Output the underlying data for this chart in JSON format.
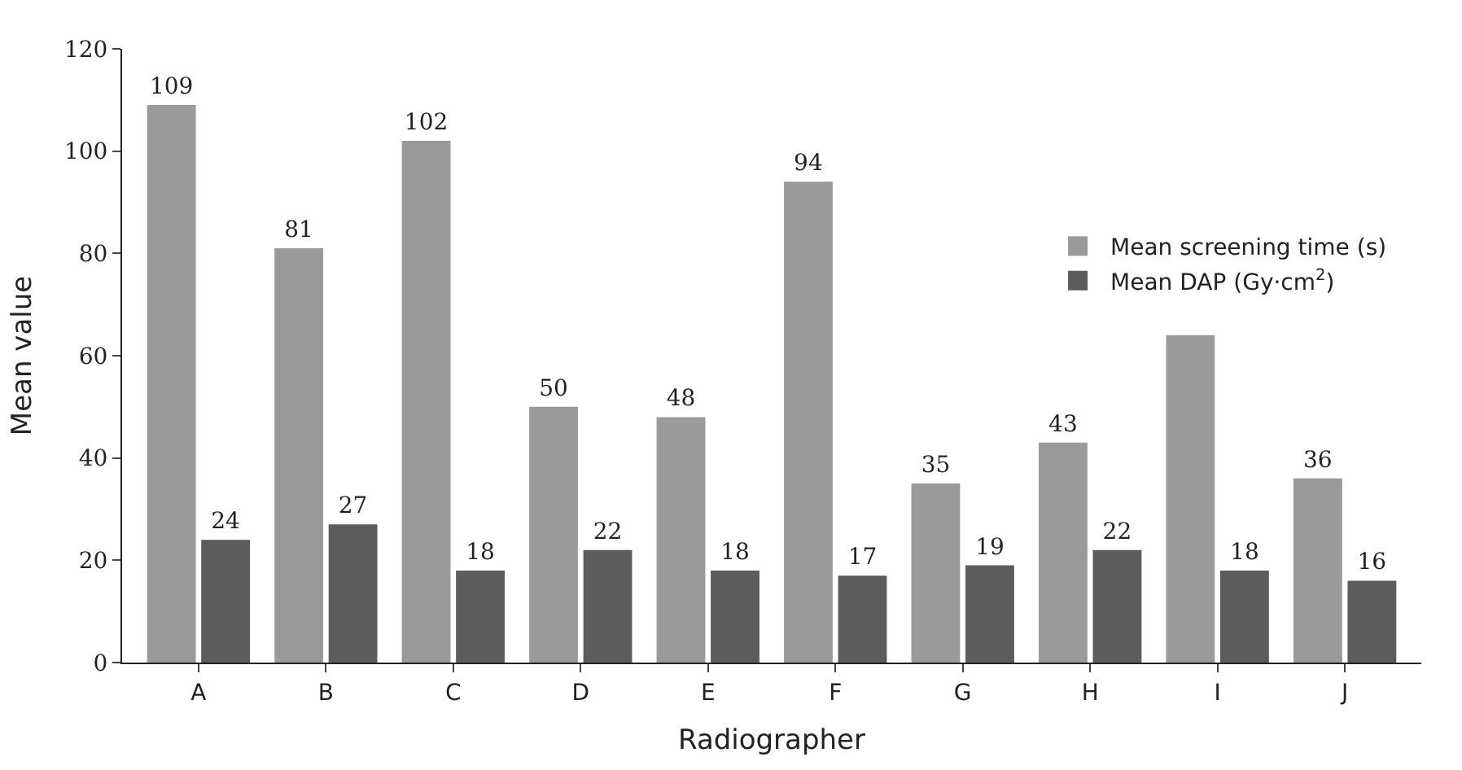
{
  "chart_data": {
    "type": "bar",
    "xlabel": "Radiographer",
    "ylabel": "Mean value",
    "categories": [
      "A",
      "B",
      "C",
      "D",
      "E",
      "F",
      "G",
      "H",
      "I",
      "J"
    ],
    "series": [
      {
        "name": "Mean screening time (s)",
        "color": "#9a9a9a",
        "values": [
          109,
          81,
          102,
          50,
          48,
          94,
          35,
          43,
          64,
          36
        ],
        "value_labels": [
          "109",
          "81",
          "102",
          "50",
          "48",
          "94",
          "35",
          "43",
          null,
          "36"
        ]
      },
      {
        "name": "Mean DAP (Gy·cm$^{2}$)",
        "color": "#5c5c5c",
        "values": [
          24,
          27,
          18,
          22,
          18,
          17,
          19,
          22,
          18,
          16
        ],
        "value_labels": [
          "24",
          "27",
          "18",
          "22",
          "18",
          "17",
          "19",
          "22",
          "18",
          "16"
        ]
      }
    ],
    "ylim": [
      0,
      120
    ],
    "yticks": [
      0,
      20,
      40,
      60,
      80,
      100,
      120
    ],
    "legend": "top right"
  }
}
